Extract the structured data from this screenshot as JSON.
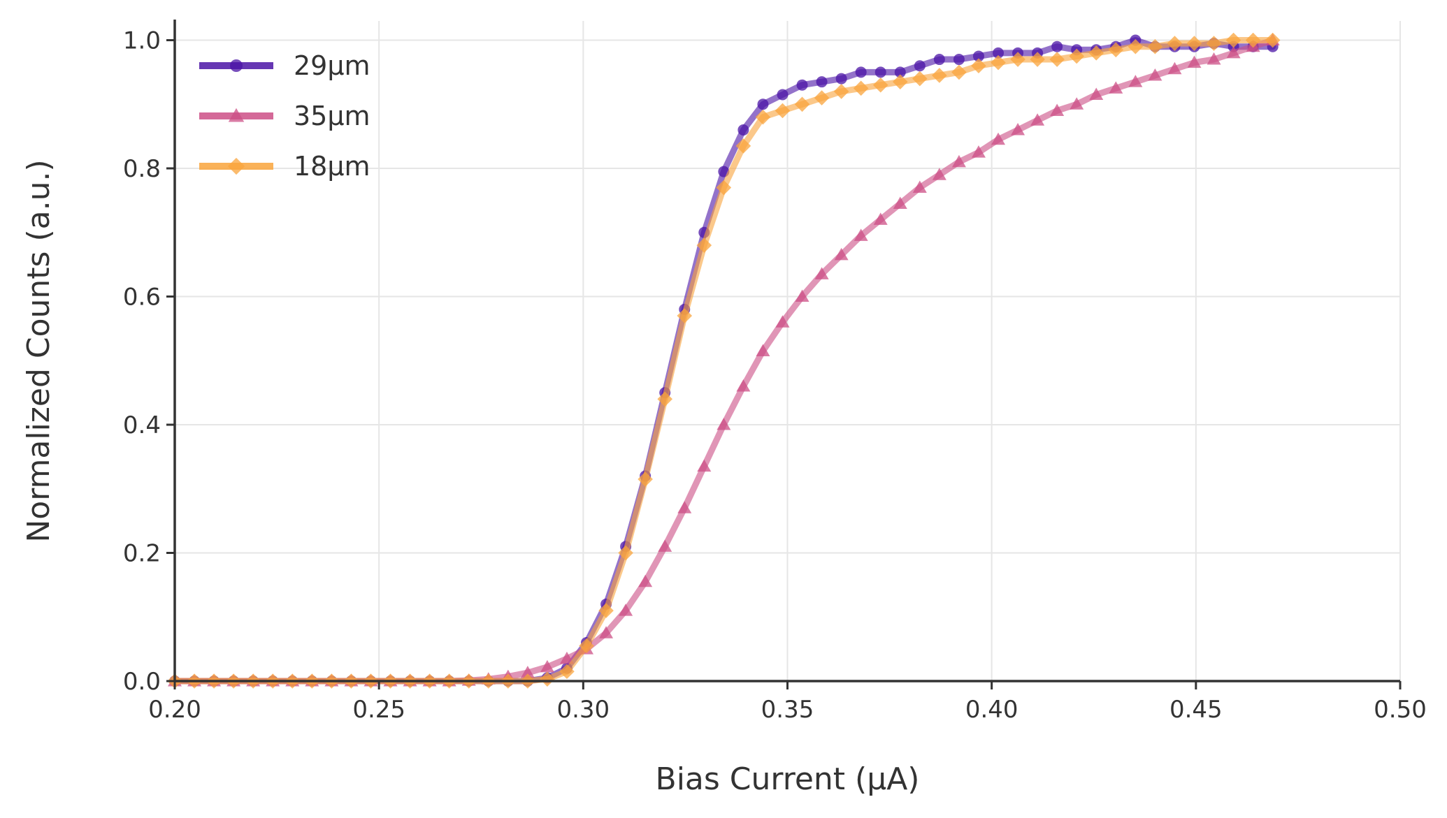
{
  "chart_data": {
    "type": "line",
    "xlabel": "Bias Current (μA)",
    "ylabel": "Normalized Counts (a.u.)",
    "xlim": [
      0.2,
      0.5
    ],
    "ylim": [
      0.0,
      1.03
    ],
    "xticks": [
      "0.20",
      "0.25",
      "0.30",
      "0.35",
      "0.40",
      "0.45",
      "0.50"
    ],
    "yticks": [
      "0.0",
      "0.2",
      "0.4",
      "0.6",
      "0.8",
      "1.0"
    ],
    "grid": true,
    "legend_position": "top-left",
    "x": [
      0.2,
      0.2048,
      0.2096,
      0.2144,
      0.2192,
      0.224,
      0.2288,
      0.2336,
      0.2384,
      0.2432,
      0.248,
      0.2528,
      0.2576,
      0.2624,
      0.2672,
      0.272,
      0.2768,
      0.2816,
      0.2864,
      0.2912,
      0.296,
      0.3008,
      0.3056,
      0.3104,
      0.3152,
      0.32,
      0.3248,
      0.3296,
      0.3344,
      0.3392,
      0.344,
      0.3488,
      0.3536,
      0.3584,
      0.3632,
      0.368,
      0.3728,
      0.3776,
      0.3824,
      0.3872,
      0.392,
      0.3968,
      0.4016,
      0.4064,
      0.4112,
      0.416,
      0.4208,
      0.4256,
      0.4304,
      0.4352,
      0.44,
      0.4448,
      0.4496,
      0.4544,
      0.4592,
      0.464,
      0.4688
    ],
    "series": [
      {
        "name": "29μm",
        "color": "#4b14a6",
        "marker": "circle",
        "values": [
          0.0,
          0.0,
          0.0,
          0.0,
          0.0,
          0.0,
          0.0,
          0.0,
          0.0,
          0.0,
          0.0,
          0.0,
          0.0,
          0.0,
          0.0,
          0.0,
          0.0,
          0.0,
          0.0,
          0.005,
          0.02,
          0.06,
          0.12,
          0.21,
          0.32,
          0.45,
          0.58,
          0.7,
          0.795,
          0.86,
          0.9,
          0.915,
          0.93,
          0.935,
          0.94,
          0.95,
          0.95,
          0.95,
          0.96,
          0.97,
          0.97,
          0.975,
          0.98,
          0.98,
          0.98,
          0.99,
          0.985,
          0.985,
          0.99,
          1.0,
          0.99,
          0.99,
          0.99,
          0.995,
          0.99,
          0.99,
          0.99
        ]
      },
      {
        "name": "35μm",
        "color": "#cc4f86",
        "marker": "triangle",
        "values": [
          0.0,
          0.0,
          0.0,
          0.0,
          0.0,
          0.0,
          0.0,
          0.0,
          0.0,
          0.0,
          0.0,
          0.0,
          0.0,
          0.0,
          0.0,
          0.001,
          0.003,
          0.007,
          0.013,
          0.022,
          0.035,
          0.05,
          0.075,
          0.11,
          0.155,
          0.21,
          0.27,
          0.335,
          0.4,
          0.46,
          0.515,
          0.56,
          0.6,
          0.635,
          0.665,
          0.695,
          0.72,
          0.745,
          0.77,
          0.79,
          0.81,
          0.825,
          0.845,
          0.86,
          0.875,
          0.89,
          0.9,
          0.915,
          0.925,
          0.935,
          0.945,
          0.955,
          0.965,
          0.97,
          0.98,
          0.99,
          1.0
        ]
      },
      {
        "name": "18μm",
        "color": "#f9a43c",
        "marker": "diamond",
        "values": [
          0.0,
          0.0,
          0.0,
          0.0,
          0.0,
          0.0,
          0.0,
          0.0,
          0.0,
          0.0,
          0.0,
          0.0,
          0.0,
          0.0,
          0.0,
          0.0,
          0.0,
          0.0,
          0.0,
          0.003,
          0.015,
          0.055,
          0.11,
          0.2,
          0.315,
          0.44,
          0.57,
          0.68,
          0.77,
          0.835,
          0.88,
          0.89,
          0.9,
          0.91,
          0.92,
          0.925,
          0.93,
          0.935,
          0.94,
          0.945,
          0.95,
          0.96,
          0.965,
          0.97,
          0.97,
          0.97,
          0.975,
          0.98,
          0.985,
          0.99,
          0.99,
          0.995,
          0.995,
          0.995,
          1.0,
          1.0,
          1.0
        ]
      }
    ]
  }
}
